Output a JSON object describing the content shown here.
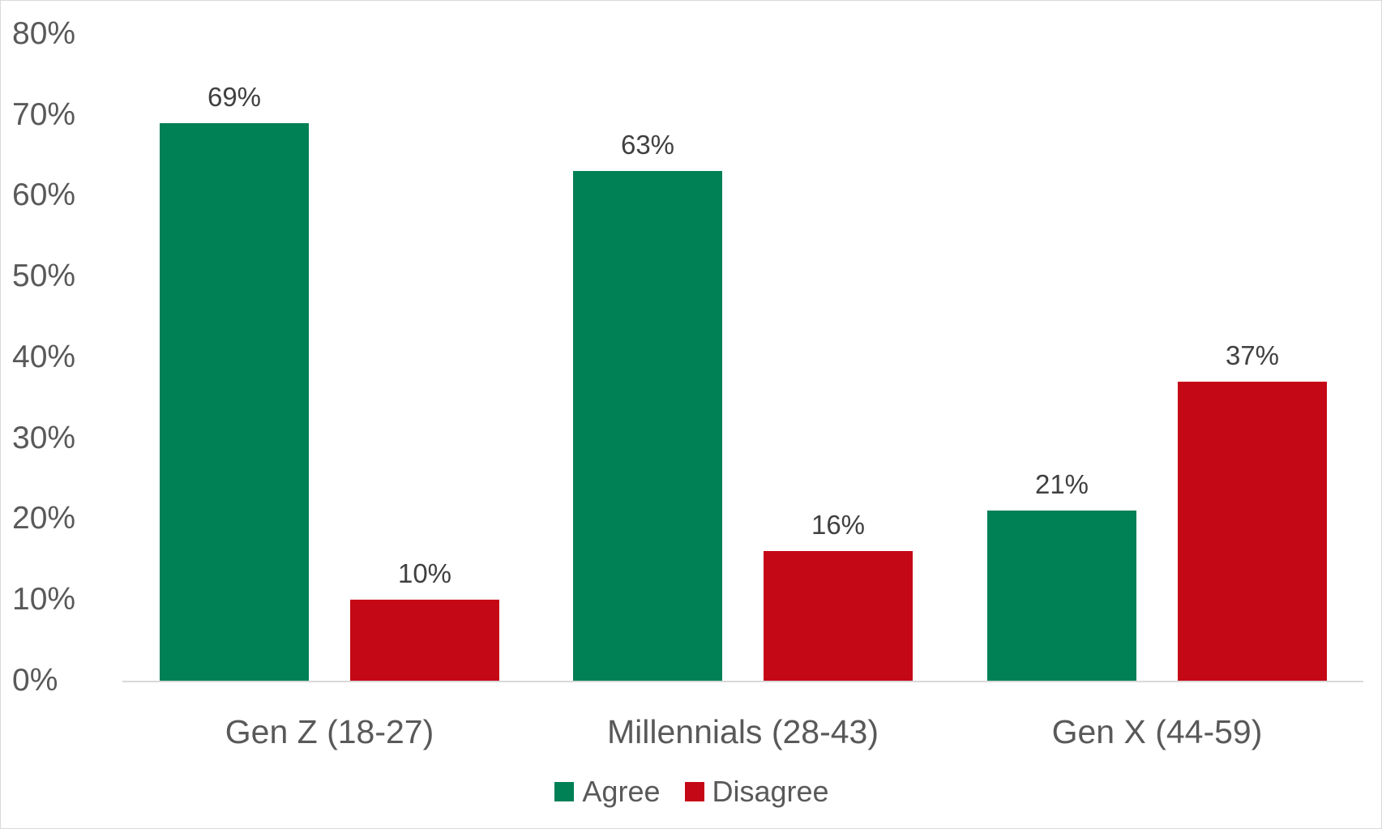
{
  "chart_data": {
    "type": "bar",
    "title": "",
    "xlabel": "",
    "ylabel": "",
    "ylim": [
      0,
      80
    ],
    "yticks": [
      "0%",
      "10%",
      "20%",
      "30%",
      "40%",
      "50%",
      "60%",
      "70%",
      "80%"
    ],
    "grid": false,
    "legend_position": "bottom",
    "categories": [
      "Gen Z (18-27)",
      "Millennials (28-43)",
      "Gen X (44-59)"
    ],
    "series": [
      {
        "name": "Agree",
        "color": "#008055",
        "values": [
          69,
          63,
          21
        ],
        "labels": [
          "69%",
          "63%",
          "21%"
        ]
      },
      {
        "name": "Disagree",
        "color": "#C50816",
        "values": [
          10,
          16,
          37
        ],
        "labels": [
          "10%",
          "16%",
          "37%"
        ]
      }
    ]
  }
}
